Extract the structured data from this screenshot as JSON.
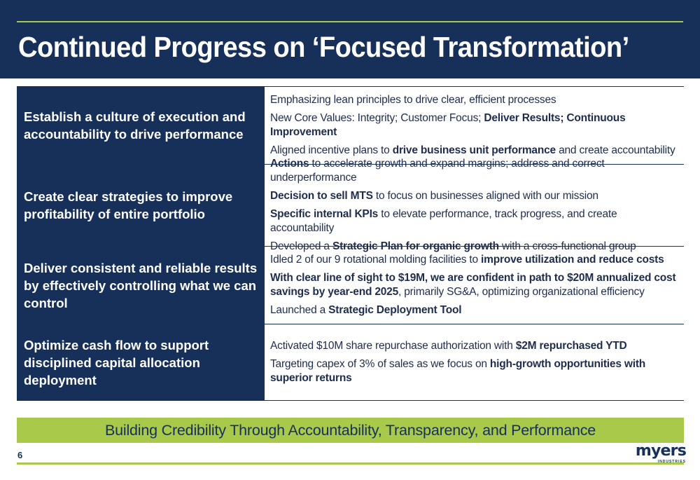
{
  "title": "Continued Progress on ‘Focused Transformation’",
  "colors": {
    "navy": "#17305a",
    "accent_green": "#a9c94a"
  },
  "rows": [
    {
      "heading": "Establish a culture of execution and accountability to drive performance",
      "lines": [
        [
          {
            "t": "Emphasizing lean principles to drive clear, efficient processes",
            "b": false
          }
        ],
        [
          {
            "t": "New Core Values: Integrity; Customer Focus; ",
            "b": false
          },
          {
            "t": "Deliver Results; Continuous Improvement",
            "b": true
          }
        ],
        [
          {
            "t": "Aligned incentive plans to ",
            "b": false
          },
          {
            "t": "drive business unit performance",
            "b": true
          },
          {
            "t": " and create accountability",
            "b": false
          }
        ]
      ]
    },
    {
      "heading": "Create clear strategies to improve profitability of entire portfolio",
      "lines": [
        [
          {
            "t": "Actions",
            "b": true
          },
          {
            "t": " to accelerate growth and expand margins; address and correct underperformance",
            "b": false
          }
        ],
        [
          {
            "t": "Decision to sell MTS",
            "b": true
          },
          {
            "t": " to focus on businesses aligned with our mission",
            "b": false
          }
        ],
        [
          {
            "t": "Specific internal KPIs",
            "b": true
          },
          {
            "t": " to elevate performance, track progress, and create accountability",
            "b": false
          }
        ],
        [
          {
            "t": "Developed a ",
            "b": false
          },
          {
            "t": "Strategic Plan for organic growth",
            "b": true
          },
          {
            "t": " with a cross-functional group",
            "b": false
          }
        ]
      ]
    },
    {
      "heading": "Deliver consistent and reliable results by effectively controlling what we can control",
      "lines": [
        [
          {
            "t": "Idled 2 of our 9 rotational molding facilities to ",
            "b": false
          },
          {
            "t": "improve utilization and reduce costs",
            "b": true
          }
        ],
        [
          {
            "t": "With clear line of sight to $19M, we are confident in path to $20M annualized cost savings by year-end 2025",
            "b": true
          },
          {
            "t": ", primarily SG&A, optimizing organizational efficiency",
            "b": false
          }
        ],
        [
          {
            "t": "Launched a ",
            "b": false
          },
          {
            "t": "Strategic Deployment Tool",
            "b": true
          }
        ]
      ]
    },
    {
      "heading": "Optimize cash flow to support disciplined capital allocation deployment",
      "lines": [
        [
          {
            "t": "Activated $10M share repurchase authorization with ",
            "b": false
          },
          {
            "t": "$2M repurchased YTD",
            "b": true
          }
        ],
        [
          {
            "t": "Targeting capex of 3% of sales as we focus on ",
            "b": false
          },
          {
            "t": "high-growth opportunities with superior returns",
            "b": true
          }
        ]
      ]
    }
  ],
  "banner": "Building Credibility Through Accountability, Transparency, and Performance",
  "page_number": "6",
  "logo": {
    "word": "myers",
    "sub": "INDUSTRIES"
  }
}
